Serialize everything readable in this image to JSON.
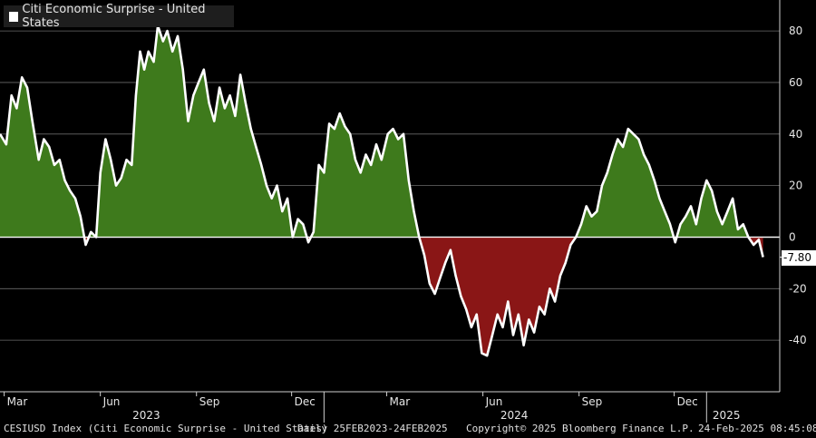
{
  "chart_data": {
    "type": "area",
    "title": "Citi Economic Surprise - United States",
    "legend": [
      {
        "name": "Citi Economic Surprise - United States",
        "color": "#ffffff"
      }
    ],
    "y_axis": {
      "position": "right",
      "ticks": [
        80,
        60,
        40,
        20,
        0,
        -20,
        -40
      ],
      "ylim": [
        -60,
        92
      ]
    },
    "x_axis": {
      "month_ticks": [
        {
          "label": "Mar",
          "date": "2023-03-01"
        },
        {
          "label": "Jun",
          "date": "2023-06-01"
        },
        {
          "label": "Sep",
          "date": "2023-09-01"
        },
        {
          "label": "Dec",
          "date": "2023-12-01"
        },
        {
          "label": "Mar",
          "date": "2024-03-01"
        },
        {
          "label": "Jun",
          "date": "2024-06-01"
        },
        {
          "label": "Sep",
          "date": "2024-09-01"
        },
        {
          "label": "Dec",
          "date": "2024-12-01"
        }
      ],
      "year_labels": [
        {
          "label": "2023",
          "date": "2023-07-15"
        },
        {
          "label": "2024",
          "date": "2024-07-01"
        },
        {
          "label": "2025",
          "date": "2025-01-20"
        }
      ],
      "year_separators": [
        "2024-01-01",
        "2025-01-01"
      ],
      "range": [
        "2023-02-25",
        "2025-03-12"
      ]
    },
    "colors": {
      "positive_fill": "#3e7a1c",
      "negative_fill": "#8a1616",
      "line": "#ffffff"
    },
    "last_value": {
      "label": "-7.80",
      "value": -7.8
    },
    "series": [
      {
        "name": "CESIUSD Index",
        "points": [
          [
            "2023-02-25",
            40
          ],
          [
            "2023-03-03",
            36
          ],
          [
            "2023-03-08",
            55
          ],
          [
            "2023-03-13",
            50
          ],
          [
            "2023-03-18",
            62
          ],
          [
            "2023-03-23",
            58
          ],
          [
            "2023-03-28",
            45
          ],
          [
            "2023-04-03",
            30
          ],
          [
            "2023-04-08",
            38
          ],
          [
            "2023-04-13",
            35
          ],
          [
            "2023-04-18",
            28
          ],
          [
            "2023-04-23",
            30
          ],
          [
            "2023-04-28",
            22
          ],
          [
            "2023-05-03",
            18
          ],
          [
            "2023-05-08",
            15
          ],
          [
            "2023-05-13",
            8
          ],
          [
            "2023-05-18",
            -3
          ],
          [
            "2023-05-23",
            2
          ],
          [
            "2023-05-28",
            0
          ],
          [
            "2023-06-01",
            25
          ],
          [
            "2023-06-06",
            38
          ],
          [
            "2023-06-11",
            30
          ],
          [
            "2023-06-16",
            20
          ],
          [
            "2023-06-21",
            23
          ],
          [
            "2023-06-26",
            30
          ],
          [
            "2023-07-01",
            28
          ],
          [
            "2023-07-05",
            55
          ],
          [
            "2023-07-09",
            72
          ],
          [
            "2023-07-13",
            65
          ],
          [
            "2023-07-17",
            72
          ],
          [
            "2023-07-22",
            68
          ],
          [
            "2023-07-26",
            82
          ],
          [
            "2023-07-31",
            76
          ],
          [
            "2023-08-04",
            80
          ],
          [
            "2023-08-09",
            72
          ],
          [
            "2023-08-14",
            78
          ],
          [
            "2023-08-19",
            65
          ],
          [
            "2023-08-24",
            45
          ],
          [
            "2023-08-29",
            55
          ],
          [
            "2023-09-03",
            60
          ],
          [
            "2023-09-08",
            65
          ],
          [
            "2023-09-13",
            52
          ],
          [
            "2023-09-18",
            45
          ],
          [
            "2023-09-23",
            58
          ],
          [
            "2023-09-28",
            50
          ],
          [
            "2023-10-03",
            55
          ],
          [
            "2023-10-08",
            47
          ],
          [
            "2023-10-13",
            63
          ],
          [
            "2023-10-18",
            52
          ],
          [
            "2023-10-23",
            42
          ],
          [
            "2023-10-28",
            35
          ],
          [
            "2023-11-02",
            28
          ],
          [
            "2023-11-07",
            20
          ],
          [
            "2023-11-12",
            15
          ],
          [
            "2023-11-17",
            20
          ],
          [
            "2023-11-22",
            10
          ],
          [
            "2023-11-27",
            15
          ],
          [
            "2023-12-02",
            0
          ],
          [
            "2023-12-07",
            7
          ],
          [
            "2023-12-12",
            5
          ],
          [
            "2023-12-17",
            -2
          ],
          [
            "2023-12-22",
            2
          ],
          [
            "2023-12-27",
            28
          ],
          [
            "2024-01-01",
            25
          ],
          [
            "2024-01-06",
            44
          ],
          [
            "2024-01-11",
            42
          ],
          [
            "2024-01-16",
            48
          ],
          [
            "2024-01-21",
            43
          ],
          [
            "2024-01-26",
            40
          ],
          [
            "2024-01-31",
            30
          ],
          [
            "2024-02-05",
            25
          ],
          [
            "2024-02-10",
            32
          ],
          [
            "2024-02-15",
            28
          ],
          [
            "2024-02-20",
            36
          ],
          [
            "2024-02-25",
            30
          ],
          [
            "2024-03-02",
            40
          ],
          [
            "2024-03-07",
            42
          ],
          [
            "2024-03-12",
            38
          ],
          [
            "2024-03-17",
            40
          ],
          [
            "2024-03-22",
            22
          ],
          [
            "2024-03-27",
            10
          ],
          [
            "2024-04-01",
            0
          ],
          [
            "2024-04-06",
            -7
          ],
          [
            "2024-04-11",
            -18
          ],
          [
            "2024-04-16",
            -22
          ],
          [
            "2024-04-21",
            -16
          ],
          [
            "2024-04-26",
            -10
          ],
          [
            "2024-05-01",
            -5
          ],
          [
            "2024-05-06",
            -15
          ],
          [
            "2024-05-11",
            -23
          ],
          [
            "2024-05-16",
            -28
          ],
          [
            "2024-05-21",
            -35
          ],
          [
            "2024-05-26",
            -30
          ],
          [
            "2024-05-31",
            -45
          ],
          [
            "2024-06-05",
            -46
          ],
          [
            "2024-06-10",
            -38
          ],
          [
            "2024-06-15",
            -30
          ],
          [
            "2024-06-20",
            -35
          ],
          [
            "2024-06-25",
            -25
          ],
          [
            "2024-06-30",
            -38
          ],
          [
            "2024-07-05",
            -30
          ],
          [
            "2024-07-10",
            -42
          ],
          [
            "2024-07-15",
            -32
          ],
          [
            "2024-07-20",
            -37
          ],
          [
            "2024-07-25",
            -27
          ],
          [
            "2024-07-30",
            -30
          ],
          [
            "2024-08-04",
            -20
          ],
          [
            "2024-08-09",
            -25
          ],
          [
            "2024-08-14",
            -15
          ],
          [
            "2024-08-19",
            -10
          ],
          [
            "2024-08-24",
            -3
          ],
          [
            "2024-08-29",
            0
          ],
          [
            "2024-09-03",
            5
          ],
          [
            "2024-09-08",
            12
          ],
          [
            "2024-09-13",
            8
          ],
          [
            "2024-09-18",
            10
          ],
          [
            "2024-09-23",
            20
          ],
          [
            "2024-09-28",
            25
          ],
          [
            "2024-10-03",
            32
          ],
          [
            "2024-10-08",
            38
          ],
          [
            "2024-10-13",
            35
          ],
          [
            "2024-10-18",
            42
          ],
          [
            "2024-10-23",
            40
          ],
          [
            "2024-10-28",
            38
          ],
          [
            "2024-11-02",
            32
          ],
          [
            "2024-11-07",
            28
          ],
          [
            "2024-11-12",
            22
          ],
          [
            "2024-11-17",
            15
          ],
          [
            "2024-11-22",
            10
          ],
          [
            "2024-11-27",
            5
          ],
          [
            "2024-12-02",
            -2
          ],
          [
            "2024-12-07",
            5
          ],
          [
            "2024-12-12",
            8
          ],
          [
            "2024-12-17",
            12
          ],
          [
            "2024-12-22",
            5
          ],
          [
            "2024-12-27",
            15
          ],
          [
            "2025-01-01",
            22
          ],
          [
            "2025-01-06",
            18
          ],
          [
            "2025-01-11",
            10
          ],
          [
            "2025-01-16",
            5
          ],
          [
            "2025-01-21",
            10
          ],
          [
            "2025-01-26",
            15
          ],
          [
            "2025-01-31",
            3
          ],
          [
            "2025-02-05",
            5
          ],
          [
            "2025-02-10",
            0
          ],
          [
            "2025-02-15",
            -3
          ],
          [
            "2025-02-20",
            -1
          ],
          [
            "2025-02-24",
            -7.8
          ]
        ]
      }
    ]
  },
  "footer": {
    "ticker": "CESIUSD Index (Citi Economic Surprise - United States)",
    "range": "Daily 25FEB2023-24FEB2025",
    "copyright": "Copyright© 2025 Bloomberg Finance L.P.",
    "timestamp": "24-Feb-2025 08:45:08"
  }
}
